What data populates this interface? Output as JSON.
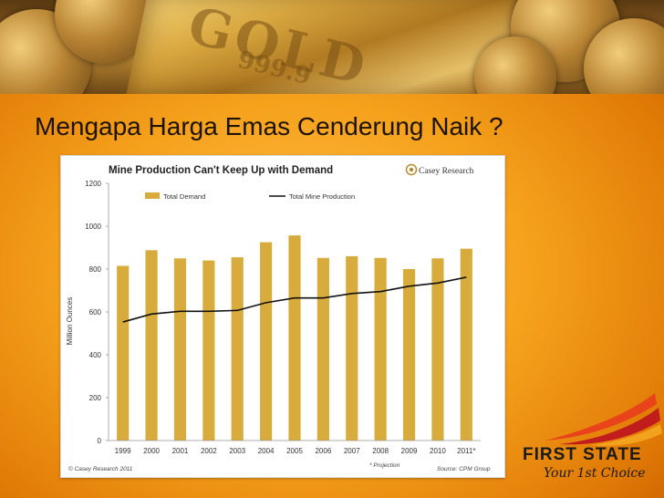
{
  "slide": {
    "title": "Mengapa Harga Emas Cenderung Naik ?"
  },
  "banner": {
    "stamp_main": "GOLD",
    "stamp_sub": "999.9"
  },
  "chart_data": {
    "type": "bar",
    "title": "Mine Production Can't Keep Up with Demand",
    "brand": "Casey Research",
    "xlabel": "",
    "ylabel": "Million Ounces",
    "ylim": [
      0,
      1200
    ],
    "yticks": [
      0,
      200,
      400,
      600,
      800,
      1000,
      1200
    ],
    "categories": [
      "1999",
      "2000",
      "2001",
      "2002",
      "2003",
      "2004",
      "2005",
      "2006",
      "2007",
      "2008",
      "2009",
      "2010",
      "2011*"
    ],
    "series": [
      {
        "name": "Total Demand",
        "kind": "bar",
        "color": "#d8ac3c",
        "values": [
          815,
          888,
          850,
          840,
          855,
          925,
          957,
          852,
          860,
          852,
          800,
          850,
          895
        ]
      },
      {
        "name": "Total Mine Production",
        "kind": "line",
        "color": "#111111",
        "values": [
          553,
          590,
          603,
          603,
          607,
          643,
          665,
          665,
          686,
          695,
          720,
          735,
          762
        ]
      }
    ],
    "legend_position": "top",
    "grid": false,
    "footer_left": "© Casey Research 2011",
    "footer_note": "* Projection",
    "footer_source": "Source: CPM Group"
  },
  "logo": {
    "name": "FIRST STATE",
    "tagline": "Your 1st Choice"
  }
}
